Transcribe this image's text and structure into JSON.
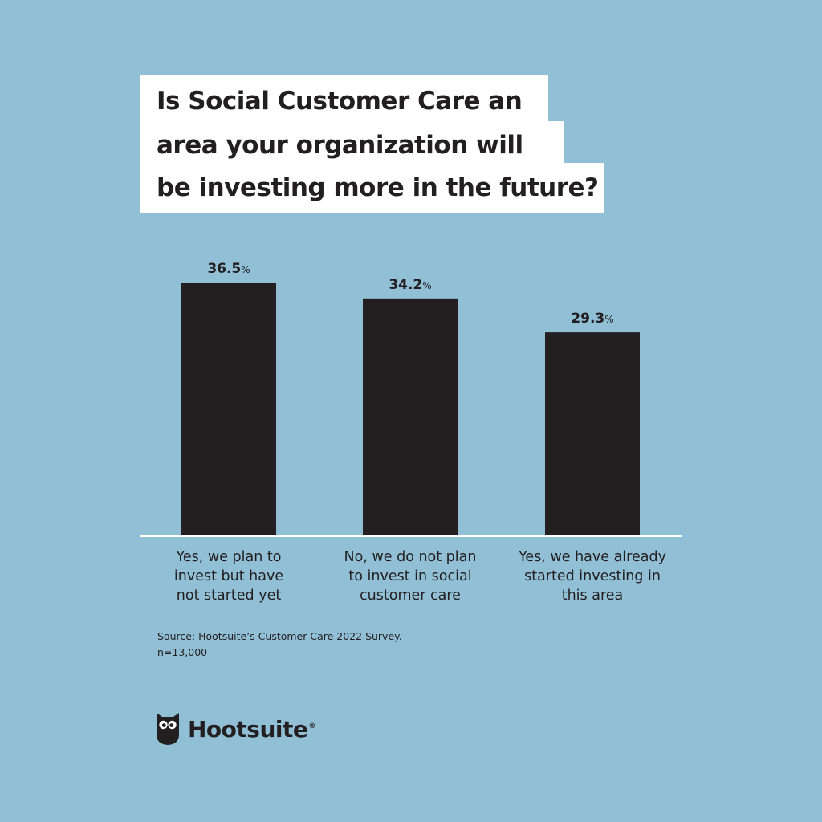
{
  "page": {
    "background": "#90bfd6"
  },
  "title_lines": [
    "Is Social Customer Care an",
    "area your organization will",
    "be investing more in the future?"
  ],
  "chart_data": {
    "type": "bar",
    "title": "Is Social Customer Care an area your organization will be investing more in the future?",
    "categories": [
      "Yes, we plan to invest but have not started yet",
      "No, we do not plan to invest in social customer care",
      "Yes, we have already started investing in this area"
    ],
    "category_lines": [
      [
        "Yes, we plan to",
        "invest but have",
        "not started yet"
      ],
      [
        "No, we do not plan",
        "to invest in social",
        "customer care"
      ],
      [
        "Yes, we have already",
        "started investing in",
        "this area"
      ]
    ],
    "values": [
      36.5,
      34.2,
      29.3
    ],
    "value_labels": [
      "36.5",
      "34.2",
      "29.3"
    ],
    "value_suffix": "%",
    "unit": "%",
    "bar_color": "#231f20",
    "ylim": [
      0,
      36.5
    ],
    "xlabel": "",
    "ylabel": "",
    "grid": false
  },
  "source": {
    "line1": "Source: Hootsuite’s Customer Care 2022 Survey.",
    "line2": "n=13,000"
  },
  "logo": {
    "icon": "owl-icon",
    "text": "Hootsuite",
    "reg": "®"
  }
}
